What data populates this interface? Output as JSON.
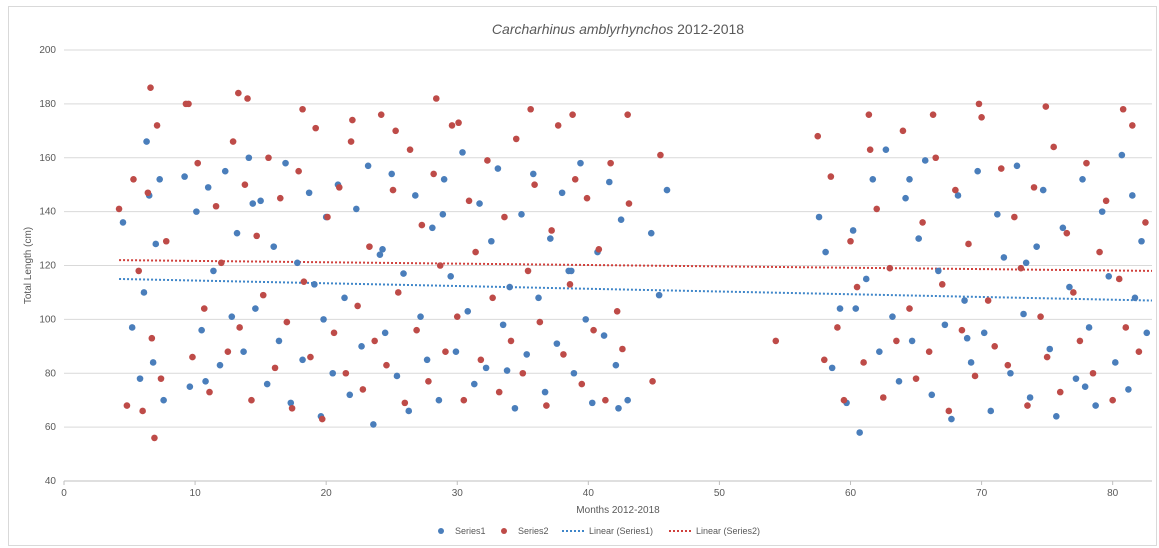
{
  "chart_data": {
    "type": "scatter",
    "title_italic": "Carcharhinus amblyrhynchos",
    "title_rest": " 2012-2018",
    "xlabel": "Months 2012-2018",
    "ylabel": "Total Length (cm)",
    "xlim": [
      0,
      83
    ],
    "ylim": [
      40,
      200
    ],
    "xticks": [
      0,
      10,
      20,
      30,
      40,
      50,
      60,
      70,
      80
    ],
    "yticks": [
      40,
      60,
      80,
      100,
      120,
      140,
      160,
      180,
      200
    ],
    "grid": "horizontal",
    "legend_position": "bottom",
    "series": [
      {
        "name": "Series1",
        "color": "#4a7ebb",
        "x": [
          4.5,
          5.2,
          5.8,
          6.1,
          6.5,
          6.8,
          7.0,
          7.3,
          7.6,
          9.2,
          9.6,
          10.1,
          10.5,
          11.0,
          11.4,
          11.9,
          12.3,
          12.8,
          13.2,
          13.7,
          14.1,
          14.6,
          15.0,
          15.5,
          16.0,
          16.4,
          16.9,
          17.3,
          17.8,
          18.2,
          18.7,
          19.1,
          19.6,
          20.0,
          20.5,
          20.9,
          21.4,
          21.8,
          22.3,
          22.7,
          23.2,
          23.6,
          24.1,
          24.5,
          25.0,
          25.4,
          25.9,
          26.3,
          26.8,
          27.2,
          27.7,
          28.1,
          28.6,
          29.0,
          29.5,
          29.9,
          30.4,
          30.8,
          31.3,
          31.7,
          32.2,
          32.6,
          33.1,
          33.5,
          34.0,
          34.4,
          34.9,
          35.3,
          35.8,
          36.2,
          36.7,
          37.1,
          37.6,
          38.0,
          38.5,
          38.9,
          39.4,
          39.8,
          40.3,
          40.7,
          41.2,
          41.6,
          42.1,
          42.5,
          43.0,
          44.8,
          45.4,
          46.0,
          57.6,
          58.1,
          58.6,
          59.2,
          59.7,
          60.2,
          60.7,
          61.2,
          61.7,
          62.2,
          62.7,
          63.2,
          63.7,
          64.2,
          64.7,
          65.2,
          65.7,
          66.2,
          66.7,
          67.2,
          67.7,
          68.2,
          68.7,
          69.2,
          69.7,
          70.2,
          70.7,
          71.2,
          71.7,
          72.2,
          72.7,
          73.2,
          73.7,
          74.2,
          74.7,
          75.2,
          75.7,
          76.2,
          76.7,
          77.2,
          77.7,
          78.2,
          78.7,
          79.2,
          79.7,
          80.2,
          80.7,
          81.2,
          81.7,
          82.2,
          82.6,
          6.3,
          10.8,
          14.4,
          19.8,
          24.3,
          28.9,
          33.8,
          38.7,
          42.3,
          60.4,
          64.5,
          68.9,
          73.4,
          77.9,
          81.5
        ],
        "y": [
          136,
          97,
          78,
          110,
          146,
          84,
          128,
          152,
          70,
          153,
          75,
          140,
          96,
          149,
          118,
          83,
          155,
          101,
          132,
          88,
          160,
          104,
          144,
          76,
          127,
          92,
          158,
          69,
          121,
          85,
          147,
          113,
          64,
          138,
          80,
          150,
          108,
          72,
          141,
          90,
          157,
          61,
          124,
          95,
          154,
          79,
          117,
          66,
          146,
          101,
          85,
          134,
          70,
          152,
          116,
          88,
          162,
          103,
          76,
          143,
          82,
          129,
          156,
          98,
          112,
          67,
          139,
          87,
          154,
          108,
          73,
          130,
          91,
          147,
          118,
          80,
          158,
          100,
          69,
          125,
          94,
          151,
          83,
          137,
          70,
          132,
          109,
          148,
          138,
          125,
          82,
          104,
          69,
          133,
          58,
          115,
          152,
          88,
          163,
          101,
          77,
          145,
          92,
          130,
          159,
          72,
          118,
          98,
          63,
          146,
          107,
          84,
          155,
          95,
          66,
          139,
          123,
          80,
          157,
          102,
          71,
          127,
          148,
          89,
          64,
          134,
          112,
          78,
          152,
          97,
          68,
          140,
          116,
          84,
          161,
          74,
          108,
          129,
          95,
          166,
          77,
          143,
          100,
          126,
          139,
          81,
          118,
          67,
          104,
          152,
          93,
          121,
          75,
          146
        ],
        "trend": [
          115,
          107
        ]
      },
      {
        "name": "Series2",
        "color": "#be4b48",
        "x": [
          4.2,
          4.8,
          5.3,
          5.7,
          6.0,
          6.4,
          6.7,
          7.1,
          7.4,
          7.8,
          9.3,
          9.8,
          10.2,
          10.7,
          11.1,
          11.6,
          12.0,
          12.5,
          12.9,
          13.4,
          13.8,
          14.3,
          14.7,
          15.2,
          15.6,
          16.1,
          16.5,
          17.0,
          17.4,
          17.9,
          18.3,
          18.8,
          19.2,
          19.7,
          20.1,
          20.6,
          21.0,
          21.5,
          21.9,
          22.4,
          22.8,
          23.3,
          23.7,
          24.2,
          24.6,
          25.1,
          25.5,
          26.0,
          26.4,
          26.9,
          27.3,
          27.8,
          28.2,
          28.7,
          29.1,
          29.6,
          30.0,
          30.5,
          30.9,
          31.4,
          31.8,
          32.3,
          32.7,
          33.2,
          33.6,
          34.1,
          34.5,
          35.0,
          35.4,
          35.9,
          36.3,
          36.8,
          37.2,
          37.7,
          38.1,
          38.6,
          39.0,
          39.5,
          39.9,
          40.4,
          40.8,
          41.3,
          41.7,
          42.2,
          42.6,
          43.1,
          44.9,
          45.5,
          54.3,
          57.5,
          58.0,
          58.5,
          59.0,
          59.5,
          60.0,
          60.5,
          61.0,
          61.5,
          62.0,
          62.5,
          63.0,
          63.5,
          64.0,
          64.5,
          65.0,
          65.5,
          66.0,
          66.5,
          67.0,
          67.5,
          68.0,
          68.5,
          69.0,
          69.5,
          70.0,
          70.5,
          71.0,
          71.5,
          72.0,
          72.5,
          73.0,
          73.5,
          74.0,
          74.5,
          75.0,
          75.5,
          76.0,
          76.5,
          77.0,
          77.5,
          78.0,
          78.5,
          79.0,
          79.5,
          80.0,
          80.5,
          81.0,
          81.5,
          82.0,
          82.5,
          6.6,
          6.9,
          9.5,
          13.3,
          14.0,
          18.2,
          22.0,
          25.3,
          28.4,
          30.1,
          35.6,
          38.8,
          43.0,
          61.4,
          66.3,
          69.8,
          74.9,
          80.8
        ],
        "y": [
          141,
          68,
          152,
          118,
          66,
          147,
          93,
          172,
          78,
          129,
          180,
          86,
          158,
          104,
          73,
          142,
          121,
          88,
          166,
          97,
          150,
          70,
          131,
          109,
          160,
          82,
          145,
          99,
          67,
          155,
          114,
          86,
          171,
          63,
          138,
          95,
          149,
          80,
          166,
          105,
          74,
          127,
          92,
          176,
          83,
          148,
          110,
          69,
          163,
          96,
          135,
          77,
          154,
          120,
          88,
          172,
          101,
          70,
          144,
          125,
          85,
          159,
          108,
          73,
          138,
          92,
          167,
          80,
          118,
          150,
          99,
          68,
          133,
          172,
          87,
          113,
          152,
          76,
          145,
          96,
          126,
          70,
          158,
          103,
          89,
          143,
          77,
          161,
          92,
          168,
          85,
          153,
          97,
          70,
          129,
          112,
          84,
          163,
          141,
          71,
          119,
          92,
          170,
          104,
          78,
          136,
          88,
          160,
          113,
          66,
          148,
          96,
          128,
          79,
          175,
          107,
          90,
          156,
          83,
          138,
          119,
          68,
          149,
          101,
          86,
          164,
          73,
          132,
          110,
          92,
          158,
          80,
          125,
          144,
          70,
          115,
          97,
          172,
          88,
          136,
          186,
          56,
          180,
          184,
          182,
          178,
          174,
          170,
          182,
          173,
          178,
          176,
          176,
          176,
          176,
          180,
          179,
          178
        ],
        "trend": [
          122,
          118
        ]
      }
    ],
    "legend": [
      "Series1",
      "Series2",
      "Linear (Series1)",
      "Linear (Series2)"
    ]
  }
}
